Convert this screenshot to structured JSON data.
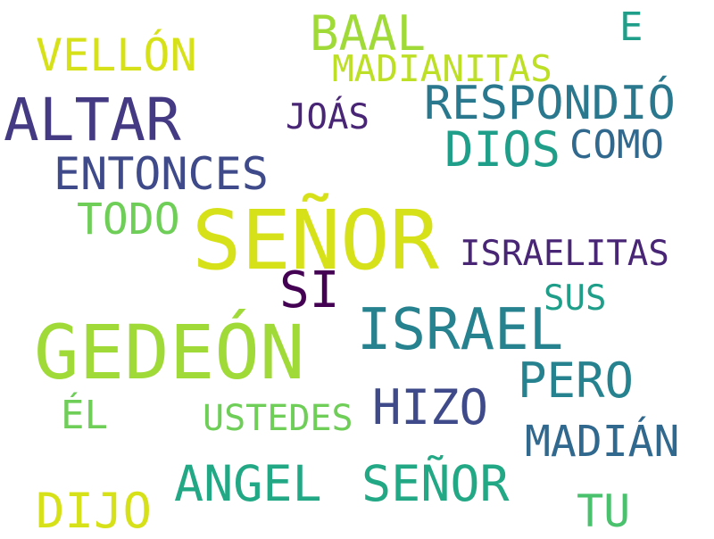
{
  "colors": {
    "yellow": "#d7e11a",
    "yellow_green": "#bddf26",
    "light_green": "#a0da39",
    "green": "#6ece58",
    "mint": "#4ac16d",
    "teal_green": "#22a884",
    "teal": "#1f9e89",
    "teal_blue": "#26828e",
    "blue_teal": "#2a788e",
    "blue": "#31688e",
    "slate": "#3e4a89",
    "indigo": "#443983",
    "purple": "#482575",
    "dark_purple": "#440154"
  },
  "words": [
    {
      "id": "senor-large",
      "text": "SEÑOR",
      "color": "#d7e11a"
    },
    {
      "id": "gedeon",
      "text": "GEDEÓN",
      "color": "#a0da39"
    },
    {
      "id": "israel",
      "text": "ISRAEL",
      "color": "#26828e"
    },
    {
      "id": "altar",
      "text": "ALTAR",
      "color": "#443983"
    },
    {
      "id": "angel",
      "text": "ANGEL",
      "color": "#22a884"
    },
    {
      "id": "senor-small",
      "text": "SEÑOR",
      "color": "#22a884"
    },
    {
      "id": "baal",
      "text": "BAAL",
      "color": "#a0da39"
    },
    {
      "id": "dios",
      "text": "DIOS",
      "color": "#1f9e89"
    },
    {
      "id": "respondio",
      "text": "RESPONDIÓ",
      "color": "#2a788e"
    },
    {
      "id": "entonces",
      "text": "ENTONCES",
      "color": "#3e4a89"
    },
    {
      "id": "madian",
      "text": "MADIÁN",
      "color": "#31688e"
    },
    {
      "id": "pero",
      "text": "PERO",
      "color": "#26828e"
    },
    {
      "id": "hizo",
      "text": "HIZO",
      "color": "#3e4a89"
    },
    {
      "id": "dijo",
      "text": "DIJO",
      "color": "#d7e11a"
    },
    {
      "id": "vellon",
      "text": "VELLÓN",
      "color": "#d7e11a"
    },
    {
      "id": "si",
      "text": "SI",
      "color": "#440154"
    },
    {
      "id": "todo",
      "text": "TODO",
      "color": "#6ece58"
    },
    {
      "id": "como",
      "text": "COMO",
      "color": "#31688e"
    },
    {
      "id": "madianitas",
      "text": "MADIANITAS",
      "color": "#bddf26"
    },
    {
      "id": "israelitas",
      "text": "ISRAELITAS",
      "color": "#482575"
    },
    {
      "id": "joas",
      "text": "JOÁS",
      "color": "#482575"
    },
    {
      "id": "sus",
      "text": "SUS",
      "color": "#1f9e89"
    },
    {
      "id": "el",
      "text": "ÉL",
      "color": "#6ece58"
    },
    {
      "id": "ustedes",
      "text": "USTEDES",
      "color": "#6ece58"
    },
    {
      "id": "tu",
      "text": "TU",
      "color": "#4ac16d"
    },
    {
      "id": "e",
      "text": "E",
      "color": "#1f9e89"
    }
  ]
}
